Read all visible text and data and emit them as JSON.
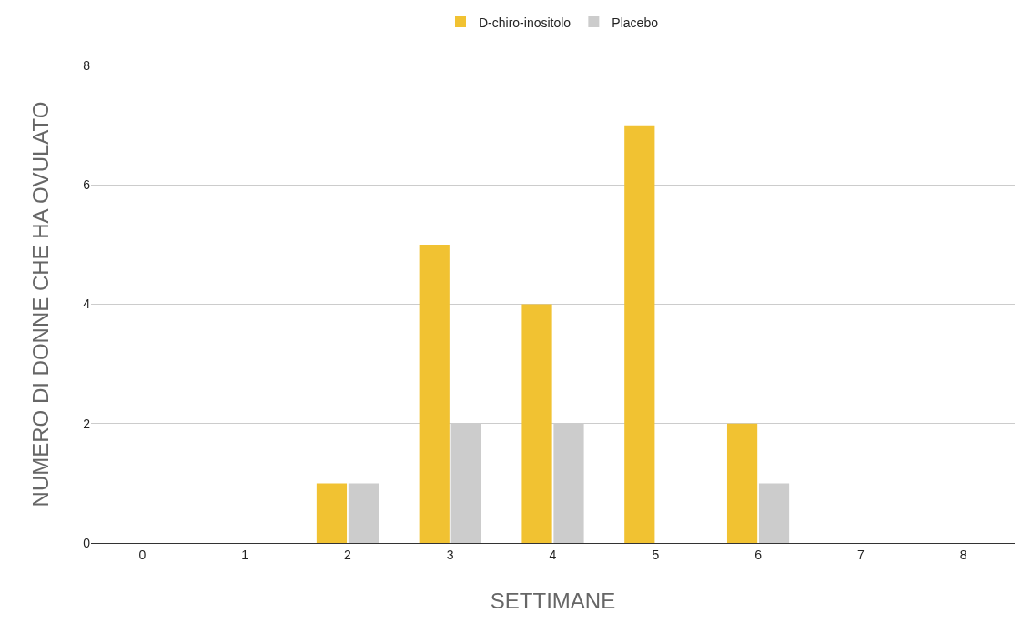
{
  "chart_data": {
    "type": "bar",
    "xlabel": "SETTIMANE",
    "ylabel": "NUMERO DI DONNE CHE HA OVULATO",
    "categories": [
      "0",
      "1",
      "2",
      "3",
      "4",
      "5",
      "6",
      "7",
      "8"
    ],
    "series": [
      {
        "name": "D-chiro-inositolo",
        "color": "#f1c232",
        "values": [
          0,
          0,
          1,
          5,
          4,
          7,
          2,
          0,
          0
        ]
      },
      {
        "name": "Placebo",
        "color": "#cccccc",
        "values": [
          0,
          0,
          1,
          2,
          2,
          0,
          1,
          0,
          0
        ]
      }
    ],
    "ylim": [
      0,
      8
    ],
    "yticks": [
      0,
      2,
      4,
      6,
      8
    ],
    "grid": "y",
    "legend": "top"
  }
}
